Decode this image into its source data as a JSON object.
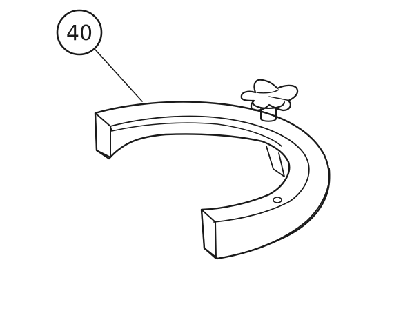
{
  "callout": {
    "number": "40"
  },
  "parts": {
    "ring": "clamp-ring",
    "knob": "star-knob"
  },
  "colors": {
    "line": "#1a1a1a",
    "background": "#ffffff"
  }
}
